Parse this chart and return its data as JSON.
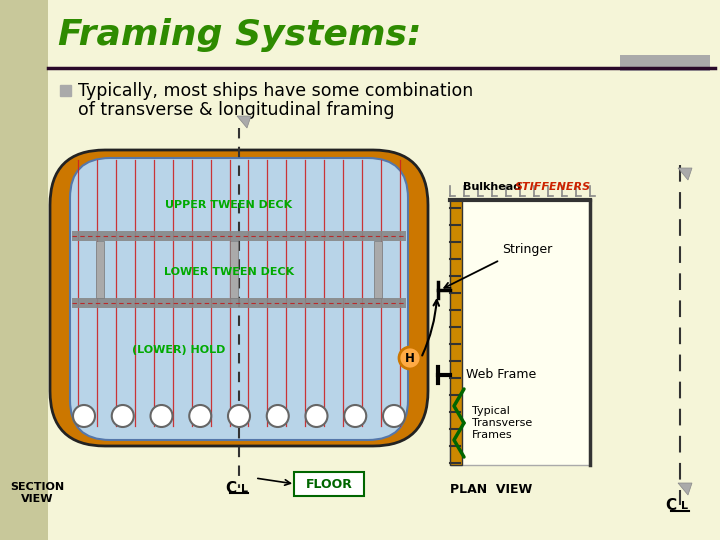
{
  "title": "Framing Systems:",
  "title_color": "#2e8b00",
  "title_fontsize": 26,
  "bg_color": "#f5f5d8",
  "left_stripe_color": "#c8c89a",
  "bullet_text_line1": "Typically, most ships have some combination",
  "bullet_text_line2": "of transverse & longitudinal framing",
  "bullet_color": "#aaaaaa",
  "text_color": "#000000",
  "header_line_color": "#2a0a2a",
  "ship_hull_outer": "#cc7700",
  "ship_hull_dark": "#222222",
  "ship_hull_fill": "#b8d4e8",
  "ship_hull_inner_edge": "#4466aa",
  "deck_color": "#888888",
  "deck_dash_color": "#cc0000",
  "frame_line_color": "#cc2222",
  "pillar_color": "#aaaaaa",
  "circle_fill": "#ffffff",
  "circle_edge": "#666666",
  "floor_box_fill": "#ffffff",
  "floor_box_border": "#006600",
  "floor_text_color": "#006600",
  "label_green": "#00aa00",
  "stiffener_red": "#cc2200",
  "orange_circle_fill": "#ffaa44",
  "orange_circle_edge": "#cc7700",
  "plan_box_fill": "#fffff0",
  "plan_left_border": "#cc8800",
  "plan_right_border_color": "#333333",
  "plan_tick_color": "#333333",
  "stiff_L_color": "#888888",
  "curly_brace_color": "#006600",
  "dashed_line_color": "#333333",
  "thumb_tack_color": "#aaaaaa",
  "section_bg_left": "#c8c89a"
}
